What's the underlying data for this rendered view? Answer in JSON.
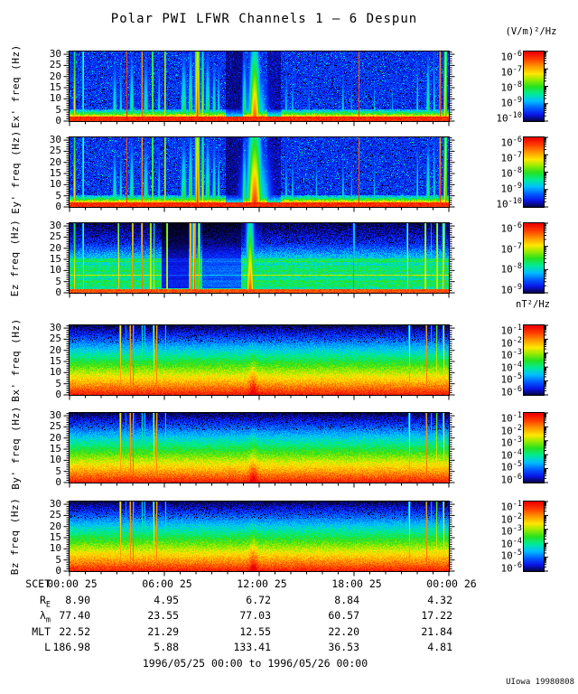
{
  "chart_data": {
    "type": "heatmap",
    "title": "Polar PWI LFWR Channels 1 — 6 Despun",
    "e_units": "(V/m)²/Hz",
    "b_units": "nT²/Hz",
    "colorbar_base": "10",
    "x_axis": {
      "tick_labels": [
        "00:00 25",
        "06:00 25",
        "12:00 25",
        "18:00 25",
        "00:00 26"
      ],
      "span_hours": 24,
      "major_every_hours": 6,
      "minor_every_hours": 1
    },
    "y_axis": {
      "ticks": [
        0,
        5,
        10,
        15,
        20,
        25,
        30
      ],
      "max_hz": 31.25,
      "unit": "Hz"
    },
    "panels": [
      {
        "id": "ex",
        "ylabel": "Ex' freq (Hz)",
        "style": "E",
        "seed": 1,
        "cbar_exps": [
          "-6",
          "-7",
          "-8",
          "-9",
          "-10"
        ],
        "description": "Electric spectral density 0-31 Hz: intense band below ~3 Hz, many interference streaks, broadband burst near 12:00",
        "regions": [
          [
            0.41,
            0.455,
            0.5
          ],
          [
            0.52,
            0.557,
            0.6
          ]
        ],
        "streaks": [
          [
            0.012,
            0.8,
            0.78,
            0.3
          ],
          [
            0.035,
            0.5,
            0.95,
            0.05
          ],
          [
            0.118,
            1.8,
            0.5,
            0.55
          ],
          [
            0.134,
            1.2,
            0.46,
            0.55
          ],
          [
            0.15,
            0.5,
            0.94,
            0.05
          ],
          [
            0.163,
            1.8,
            0.55,
            0.5
          ],
          [
            0.19,
            0.5,
            0.92,
            0.05
          ],
          [
            0.2,
            2.2,
            0.5,
            0.5
          ],
          [
            0.218,
            0.5,
            0.9,
            0.06
          ],
          [
            0.235,
            1.0,
            0.5,
            0.55
          ],
          [
            0.251,
            0.5,
            0.93,
            0.05
          ],
          [
            0.3,
            2.5,
            0.56,
            0.5
          ],
          [
            0.318,
            1.8,
            0.6,
            0.45
          ],
          [
            0.336,
            2.0,
            0.92,
            0.18
          ],
          [
            0.35,
            1.2,
            0.7,
            0.35
          ],
          [
            0.363,
            2.0,
            0.58,
            0.5
          ],
          [
            0.38,
            1.6,
            0.52,
            0.55
          ],
          [
            0.392,
            1.2,
            0.48,
            0.55
          ],
          [
            0.46,
            2.0,
            0.55,
            0.5
          ],
          [
            0.487,
            4.5,
            0.9,
            0.42
          ],
          [
            0.49,
            10,
            0.5,
            0.58
          ],
          [
            0.57,
            0.9,
            0.44,
            0.6
          ],
          [
            0.587,
            0.9,
            0.42,
            0.62
          ],
          [
            0.63,
            0.7,
            0.38,
            0.65
          ],
          [
            0.72,
            0.9,
            0.45,
            0.6
          ],
          [
            0.742,
            0.7,
            0.4,
            0.62
          ],
          [
            0.762,
            0.5,
            0.92,
            0.05
          ],
          [
            0.802,
            0.7,
            0.4,
            0.65
          ],
          [
            0.85,
            0.6,
            0.35,
            0.65
          ],
          [
            0.916,
            0.9,
            0.5,
            0.55
          ],
          [
            0.944,
            1.6,
            0.55,
            0.5
          ],
          [
            0.96,
            0.9,
            0.5,
            0.45
          ],
          [
            0.976,
            0.6,
            0.92,
            0.1
          ],
          [
            0.99,
            1.3,
            0.86,
            0.2
          ]
        ]
      },
      {
        "id": "ey",
        "ylabel": "Ey' freq (Hz)",
        "style": "E",
        "seed": 2,
        "cbar_exps": [
          "-6",
          "-7",
          "-8",
          "-9",
          "-10"
        ],
        "description": "Same as Ex' with stronger broadband burst near 12:00",
        "regions": [
          [
            0.41,
            0.455,
            0.5
          ],
          [
            0.52,
            0.557,
            0.6
          ]
        ],
        "streaks": [
          [
            0.012,
            0.8,
            0.8,
            0.28
          ],
          [
            0.035,
            0.5,
            0.95,
            0.05
          ],
          [
            0.118,
            1.8,
            0.52,
            0.55
          ],
          [
            0.134,
            1.2,
            0.48,
            0.55
          ],
          [
            0.15,
            0.5,
            0.94,
            0.05
          ],
          [
            0.163,
            1.8,
            0.56,
            0.5
          ],
          [
            0.19,
            0.5,
            0.92,
            0.05
          ],
          [
            0.2,
            2.2,
            0.52,
            0.5
          ],
          [
            0.218,
            0.5,
            0.9,
            0.06
          ],
          [
            0.235,
            1.0,
            0.5,
            0.55
          ],
          [
            0.251,
            0.5,
            0.93,
            0.05
          ],
          [
            0.3,
            2.5,
            0.58,
            0.5
          ],
          [
            0.318,
            1.8,
            0.62,
            0.45
          ],
          [
            0.336,
            2.0,
            0.93,
            0.18
          ],
          [
            0.35,
            1.2,
            0.72,
            0.32
          ],
          [
            0.363,
            2.0,
            0.6,
            0.48
          ],
          [
            0.38,
            1.6,
            0.54,
            0.52
          ],
          [
            0.392,
            1.2,
            0.5,
            0.55
          ],
          [
            0.46,
            2.0,
            0.56,
            0.5
          ],
          [
            0.487,
            6,
            0.94,
            0.36
          ],
          [
            0.49,
            12,
            0.56,
            0.52
          ],
          [
            0.57,
            0.9,
            0.46,
            0.6
          ],
          [
            0.587,
            0.9,
            0.44,
            0.6
          ],
          [
            0.65,
            0.8,
            0.42,
            0.62
          ],
          [
            0.72,
            0.9,
            0.46,
            0.6
          ],
          [
            0.742,
            0.7,
            0.42,
            0.62
          ],
          [
            0.762,
            0.5,
            0.92,
            0.05
          ],
          [
            0.802,
            0.7,
            0.42,
            0.64
          ],
          [
            0.916,
            0.9,
            0.52,
            0.55
          ],
          [
            0.944,
            1.6,
            0.56,
            0.5
          ],
          [
            0.96,
            0.9,
            0.52,
            0.45
          ],
          [
            0.976,
            0.6,
            0.92,
            0.1
          ],
          [
            0.99,
            1.3,
            0.88,
            0.2
          ]
        ]
      },
      {
        "id": "ez",
        "ylabel": "Ez freq (Hz)",
        "style": "Ez",
        "seed": 3,
        "cbar_exps": [
          "-6",
          "-7",
          "-8",
          "-9"
        ],
        "description": "Spin-axis electric component: banded mid-level background below ~15 Hz, quiet dark interval ~06:00-08:00, burst near 12:00",
        "regions": [
          [
            0.242,
            0.313,
            0.32
          ],
          [
            0.35,
            0.45,
            0.5
          ]
        ],
        "streaks": [
          [
            0.012,
            0.8,
            0.78,
            0.3
          ],
          [
            0.035,
            0.5,
            0.95,
            0.05
          ],
          [
            0.128,
            0.6,
            0.84,
            0.18
          ],
          [
            0.165,
            0.6,
            0.93,
            0.05
          ],
          [
            0.19,
            0.6,
            0.9,
            0.08
          ],
          [
            0.213,
            0.7,
            0.88,
            0.1
          ],
          [
            0.222,
            0.5,
            0.78,
            0.22
          ],
          [
            0.256,
            0.6,
            0.92,
            0.06
          ],
          [
            0.318,
            0.9,
            0.94,
            0.06
          ],
          [
            0.328,
            1.3,
            0.9,
            0.1
          ],
          [
            0.34,
            0.9,
            0.86,
            0.14
          ],
          [
            0.475,
            3.5,
            0.9,
            0.4
          ],
          [
            0.48,
            8,
            0.5,
            0.58
          ],
          [
            0.748,
            0.6,
            0.93,
            0.05
          ],
          [
            0.89,
            0.6,
            0.84,
            0.14
          ],
          [
            0.937,
            0.7,
            0.9,
            0.1
          ],
          [
            0.952,
            0.5,
            0.55,
            0.4
          ],
          [
            0.968,
            0.7,
            0.9,
            0.1
          ],
          [
            0.985,
            1.1,
            0.86,
            0.16
          ]
        ]
      },
      {
        "id": "bx",
        "ylabel": "Bx' freq (Hz)",
        "style": "B",
        "seed": 4,
        "cbar_exps": [
          "-1",
          "-2",
          "-3",
          "-4",
          "-5",
          "-6"
        ],
        "description": "Magnetic spectral density: smooth falloff with frequency, narrow interference lines ~03:00-06:00 and near end of day",
        "regions": [],
        "streaks": [
          [
            0.133,
            0.7,
            0.84,
            0.12
          ],
          [
            0.147,
            0.6,
            0.48,
            0.3
          ],
          [
            0.159,
            0.5,
            0.92,
            0.05
          ],
          [
            0.167,
            0.5,
            0.9,
            0.05
          ],
          [
            0.19,
            0.6,
            0.6,
            0.28
          ],
          [
            0.197,
            0.6,
            0.58,
            0.3
          ],
          [
            0.221,
            0.7,
            0.82,
            0.15
          ],
          [
            0.229,
            0.5,
            0.9,
            0.07
          ],
          [
            0.252,
            0.6,
            0.6,
            0.3
          ],
          [
            0.483,
            3,
            0.12,
            0.8,
            1
          ],
          [
            0.895,
            0.7,
            0.84,
            0.12
          ],
          [
            0.94,
            0.5,
            0.92,
            0.05
          ],
          [
            0.953,
            0.6,
            0.5,
            0.3
          ],
          [
            0.967,
            0.6,
            0.76,
            0.18
          ],
          [
            0.985,
            0.5,
            0.9,
            0.06
          ]
        ]
      },
      {
        "id": "by",
        "ylabel": "By' freq (Hz)",
        "style": "B",
        "seed": 5,
        "cbar_exps": [
          "-1",
          "-2",
          "-3",
          "-4",
          "-5",
          "-6"
        ],
        "description": "Same morphology as Bx'",
        "regions": [],
        "streaks": [
          [
            0.133,
            0.7,
            0.84,
            0.12
          ],
          [
            0.147,
            0.6,
            0.48,
            0.3
          ],
          [
            0.159,
            0.5,
            0.92,
            0.05
          ],
          [
            0.167,
            0.5,
            0.9,
            0.05
          ],
          [
            0.19,
            0.6,
            0.6,
            0.28
          ],
          [
            0.197,
            0.6,
            0.58,
            0.3
          ],
          [
            0.221,
            0.7,
            0.82,
            0.15
          ],
          [
            0.229,
            0.5,
            0.9,
            0.07
          ],
          [
            0.252,
            0.6,
            0.6,
            0.3
          ],
          [
            0.483,
            3,
            0.12,
            0.8,
            1
          ],
          [
            0.895,
            0.7,
            0.84,
            0.12
          ],
          [
            0.94,
            0.5,
            0.92,
            0.05
          ],
          [
            0.953,
            0.6,
            0.5,
            0.3
          ],
          [
            0.967,
            0.6,
            0.76,
            0.18
          ],
          [
            0.985,
            0.5,
            0.9,
            0.06
          ]
        ]
      },
      {
        "id": "bz",
        "ylabel": "Bz freq (Hz)",
        "style": "B",
        "seed": 6,
        "cbar_exps": [
          "-1",
          "-2",
          "-3",
          "-4",
          "-5",
          "-6"
        ],
        "description": "Same morphology as Bx'",
        "regions": [],
        "streaks": [
          [
            0.133,
            0.7,
            0.84,
            0.12
          ],
          [
            0.147,
            0.6,
            0.48,
            0.3
          ],
          [
            0.159,
            0.5,
            0.92,
            0.05
          ],
          [
            0.167,
            0.5,
            0.9,
            0.05
          ],
          [
            0.19,
            0.6,
            0.6,
            0.28
          ],
          [
            0.197,
            0.6,
            0.58,
            0.3
          ],
          [
            0.221,
            0.7,
            0.82,
            0.15
          ],
          [
            0.229,
            0.5,
            0.9,
            0.07
          ],
          [
            0.252,
            0.6,
            0.6,
            0.3
          ],
          [
            0.483,
            3,
            0.12,
            0.8,
            1
          ],
          [
            0.895,
            0.7,
            0.84,
            0.12
          ],
          [
            0.94,
            0.5,
            0.92,
            0.05
          ],
          [
            0.953,
            0.6,
            0.5,
            0.3
          ],
          [
            0.967,
            0.6,
            0.76,
            0.18
          ],
          [
            0.985,
            0.5,
            0.9,
            0.06
          ]
        ]
      }
    ],
    "ephemeris": {
      "rows": [
        {
          "label": "SCET",
          "sub": "",
          "align": "center",
          "values": [
            "00:00 25",
            "06:00 25",
            "12:00 25",
            "18:00 25",
            "00:00 26"
          ]
        },
        {
          "label": "R",
          "sub": "E",
          "align": "right",
          "values": [
            "8.90",
            "4.95",
            "6.72",
            "8.84",
            "4.32"
          ]
        },
        {
          "label": "λ",
          "sub": "m",
          "align": "right",
          "values": [
            "77.40",
            "23.55",
            "77.03",
            "60.57",
            "17.22"
          ]
        },
        {
          "label": "MLT",
          "sub": "",
          "align": "right",
          "values": [
            "22.52",
            "21.29",
            "12.55",
            "22.20",
            "21.84"
          ]
        },
        {
          "label": "L",
          "sub": "",
          "align": "right",
          "values": [
            "186.98",
            "5.88",
            "133.41",
            "36.53",
            "4.81"
          ]
        }
      ]
    },
    "footer": "1996/05/25 00:00 to 1996/05/26 00:00",
    "credit": "UIowa 19980808",
    "colors": {
      "background": "#ffffff",
      "axis": "#000000",
      "text": "#000000"
    }
  }
}
